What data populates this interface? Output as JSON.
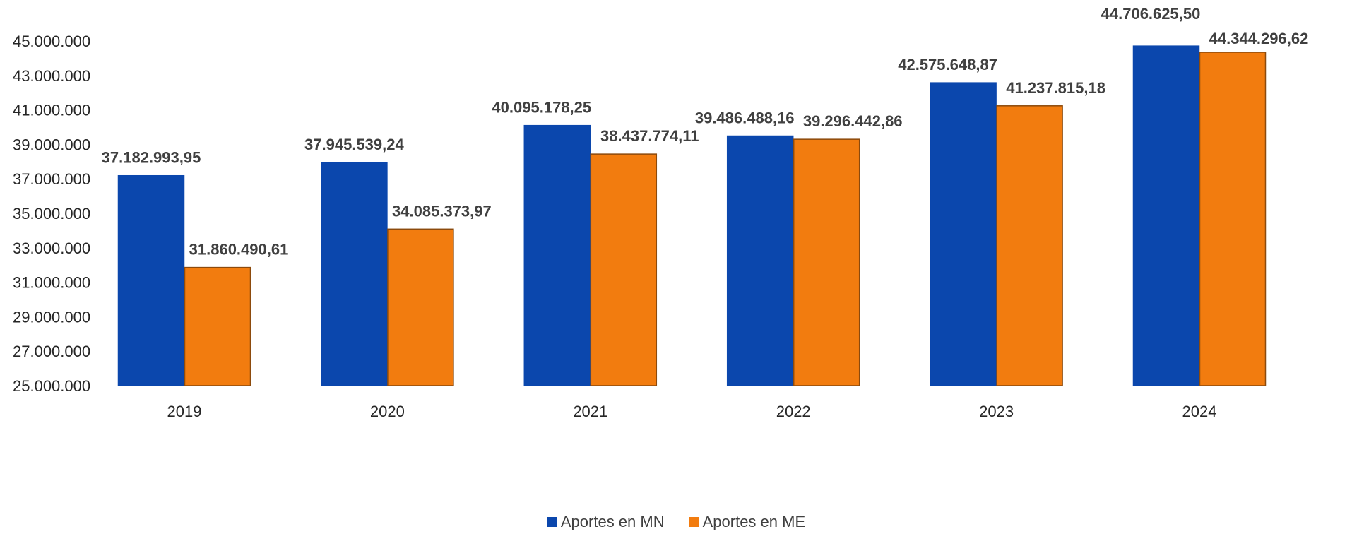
{
  "chart_data": {
    "type": "bar",
    "categories": [
      "2019",
      "2020",
      "2021",
      "2022",
      "2023",
      "2024"
    ],
    "series": [
      {
        "name": "Aportes en MN",
        "color": "#0B47AD",
        "values": [
          37182993.95,
          37945539.24,
          40095178.25,
          39486488.16,
          42575648.87,
          44706625.5
        ],
        "labels": [
          "37.182.993,95",
          "37.945.539,24",
          "40.095.178,25",
          "39.486.488,16",
          "42.575.648,87",
          "44.706.625,50"
        ]
      },
      {
        "name": "Aportes en ME",
        "color": "#F27C0F",
        "values": [
          31860490.61,
          34085373.97,
          38437774.11,
          39296442.86,
          41237815.18,
          44344296.62
        ],
        "labels": [
          "31.860.490,61",
          "34.085.373,97",
          "38.437.774,11",
          "39.296.442,86",
          "41.237.815,18",
          "44.344.296,62"
        ]
      }
    ],
    "ylim": [
      25000000,
      45000000
    ],
    "yticks": [
      "25.000.000",
      "27.000.000",
      "29.000.000",
      "31.000.000",
      "33.000.000",
      "35.000.000",
      "37.000.000",
      "39.000.000",
      "41.000.000",
      "43.000.000",
      "45.000.000"
    ],
    "legend_position": "bottom",
    "grid": false
  }
}
